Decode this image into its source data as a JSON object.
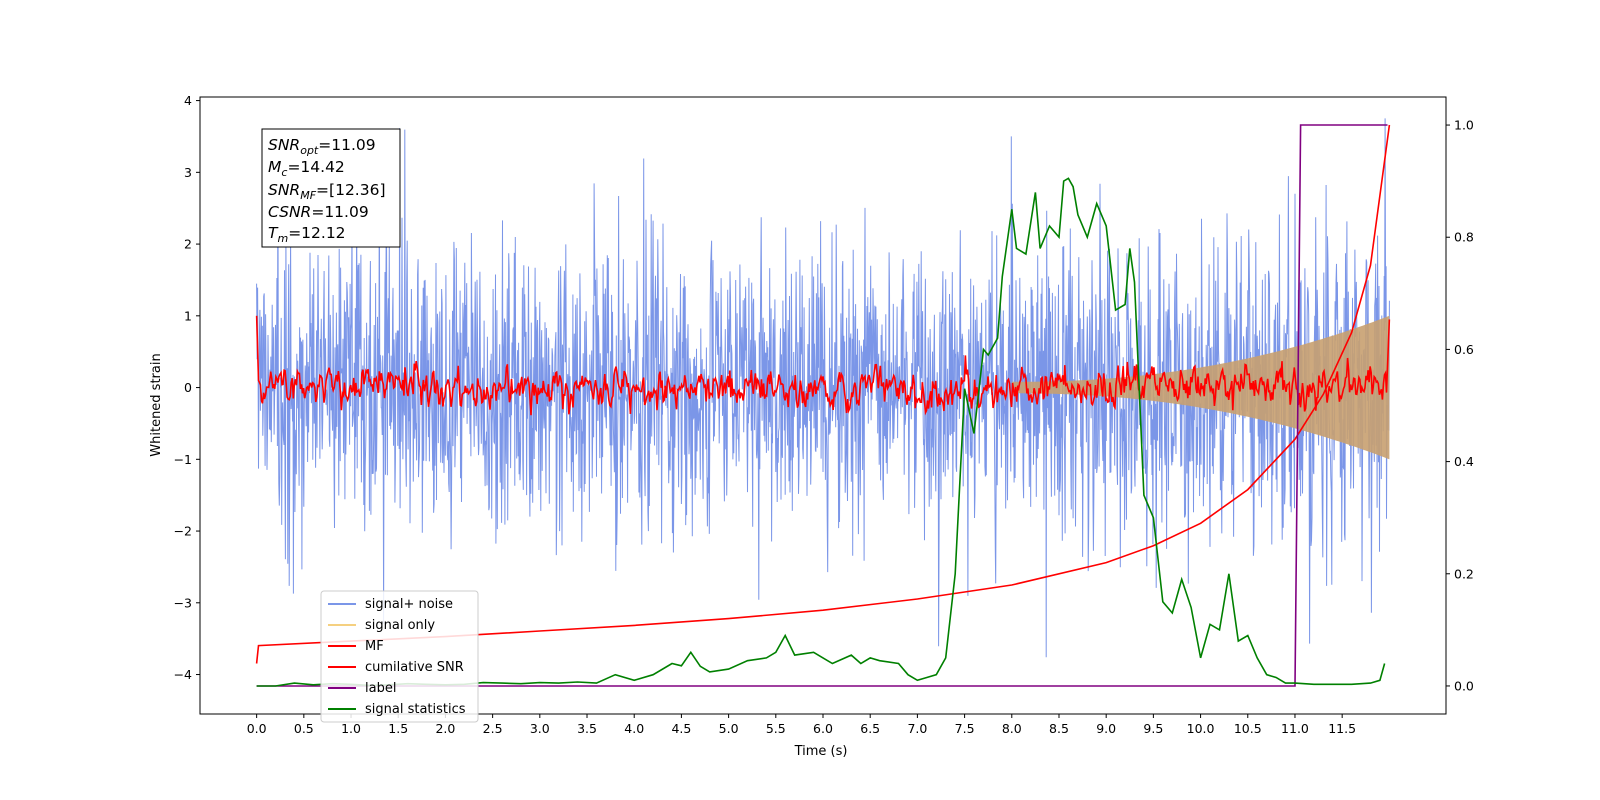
{
  "chart_data": {
    "type": "line",
    "xlabel": "Time (s)",
    "ylabel": "Whitened strain",
    "xlim": [
      -0.6,
      12.6
    ],
    "ylim": [
      -4.55,
      4.05
    ],
    "y2lim": [
      -0.05,
      1.05
    ],
    "xticks": [
      "0.0",
      "0.5",
      "1.0",
      "1.5",
      "2.0",
      "2.5",
      "3.0",
      "3.5",
      "4.0",
      "4.5",
      "5.0",
      "5.5",
      "6.0",
      "6.5",
      "7.0",
      "7.5",
      "8.0",
      "8.5",
      "9.0",
      "9.5",
      "10.0",
      "10.5",
      "11.0",
      "11.5"
    ],
    "yticks": [
      "4",
      "3",
      "2",
      "1",
      "0",
      "−1",
      "−2",
      "−3",
      "−4"
    ],
    "y2ticks": [
      "1.0",
      "0.8",
      "0.6",
      "0.4",
      "0.2",
      "0.0"
    ],
    "grid": false,
    "legend_position": "lower-left",
    "annotation": {
      "line1": {
        "sym": "SNR",
        "sub": "opt",
        "value": "=11.09"
      },
      "line2": {
        "sym": "M",
        "sub": "c",
        "value": "=14.42"
      },
      "line3": {
        "sym": "SNR",
        "sub": "MF",
        "value": "=[12.36]"
      },
      "line4": {
        "sym": "CSNR",
        "sub": "",
        "value": "=11.09"
      },
      "line5": {
        "sym": "T",
        "sub": "m",
        "value": "=12.12"
      }
    },
    "series": [
      {
        "name": "signal+ noise",
        "axis": "left",
        "color": "#7b96e8",
        "description": "whitened noise plus signal, amplitude roughly +-2 with spikes to about +-3.6",
        "noise_amplitude": 1.0
      },
      {
        "name": "signal only",
        "axis": "left",
        "color": "#f5d080",
        "description": "chirp signal, amplitude growing from about 0.1 to about 1.0 toward t=12",
        "amplitude_start": 0.08,
        "amplitude_end": 1.0
      },
      {
        "name": "MF",
        "axis": "left",
        "color": "#ff0000",
        "description": "matched filter output fluctuating around 0",
        "x": [
          0.0,
          0.02,
          12.0
        ],
        "y": [
          1.0,
          0.1,
          0.95
        ]
      },
      {
        "name": "cumilative SNR",
        "axis": "right",
        "color": "#ff0000",
        "x": [
          0.0,
          0.02,
          1.0,
          2.0,
          3.0,
          4.0,
          5.0,
          6.0,
          7.0,
          8.0,
          9.0,
          9.5,
          10.0,
          10.5,
          11.0,
          11.3,
          11.6,
          11.8,
          12.0
        ],
        "y": [
          0.04,
          0.072,
          0.08,
          0.088,
          0.098,
          0.108,
          0.12,
          0.135,
          0.155,
          0.18,
          0.22,
          0.25,
          0.29,
          0.35,
          0.44,
          0.52,
          0.63,
          0.75,
          1.0
        ]
      },
      {
        "name": "label",
        "axis": "right",
        "color": "#800080",
        "x": [
          0.0,
          11.0,
          11.06,
          11.98
        ],
        "y": [
          0.0,
          0.0,
          1.0,
          1.0
        ]
      },
      {
        "name": "signal statistics",
        "axis": "right",
        "color": "#008000",
        "x": [
          0.0,
          0.2,
          0.4,
          0.6,
          0.8,
          1.0,
          1.2,
          1.4,
          1.6,
          1.8,
          2.0,
          2.2,
          2.4,
          2.6,
          2.8,
          3.0,
          3.2,
          3.4,
          3.6,
          3.8,
          4.0,
          4.2,
          4.4,
          4.5,
          4.6,
          4.7,
          4.8,
          5.0,
          5.2,
          5.4,
          5.5,
          5.6,
          5.7,
          5.9,
          6.0,
          6.1,
          6.3,
          6.4,
          6.5,
          6.6,
          6.8,
          6.9,
          7.0,
          7.1,
          7.2,
          7.3,
          7.4,
          7.5,
          7.6,
          7.7,
          7.75,
          7.85,
          7.9,
          8.0,
          8.05,
          8.15,
          8.25,
          8.3,
          8.4,
          8.5,
          8.55,
          8.6,
          8.65,
          8.7,
          8.8,
          8.9,
          9.0,
          9.1,
          9.2,
          9.25,
          9.3,
          9.4,
          9.5,
          9.6,
          9.7,
          9.8,
          9.9,
          10.0,
          10.1,
          10.2,
          10.3,
          10.4,
          10.5,
          10.6,
          10.7,
          10.8,
          10.9,
          11.0,
          11.2,
          11.4,
          11.6,
          11.8,
          11.9,
          11.95
        ],
        "y": [
          0.0,
          0.0,
          0.005,
          0.002,
          0.004,
          0.003,
          0.001,
          0.002,
          0.004,
          0.003,
          0.002,
          0.003,
          0.006,
          0.005,
          0.004,
          0.006,
          0.005,
          0.007,
          0.005,
          0.02,
          0.01,
          0.02,
          0.04,
          0.036,
          0.06,
          0.035,
          0.025,
          0.03,
          0.045,
          0.05,
          0.06,
          0.09,
          0.055,
          0.06,
          0.05,
          0.04,
          0.055,
          0.04,
          0.05,
          0.045,
          0.04,
          0.02,
          0.01,
          0.015,
          0.02,
          0.05,
          0.2,
          0.53,
          0.45,
          0.6,
          0.59,
          0.62,
          0.73,
          0.85,
          0.78,
          0.77,
          0.88,
          0.78,
          0.82,
          0.8,
          0.9,
          0.905,
          0.89,
          0.84,
          0.8,
          0.86,
          0.82,
          0.67,
          0.68,
          0.78,
          0.72,
          0.34,
          0.3,
          0.15,
          0.13,
          0.19,
          0.14,
          0.05,
          0.11,
          0.1,
          0.2,
          0.08,
          0.09,
          0.05,
          0.02,
          0.015,
          0.005,
          0.005,
          0.003,
          0.003,
          0.003,
          0.005,
          0.01,
          0.04
        ]
      }
    ]
  }
}
